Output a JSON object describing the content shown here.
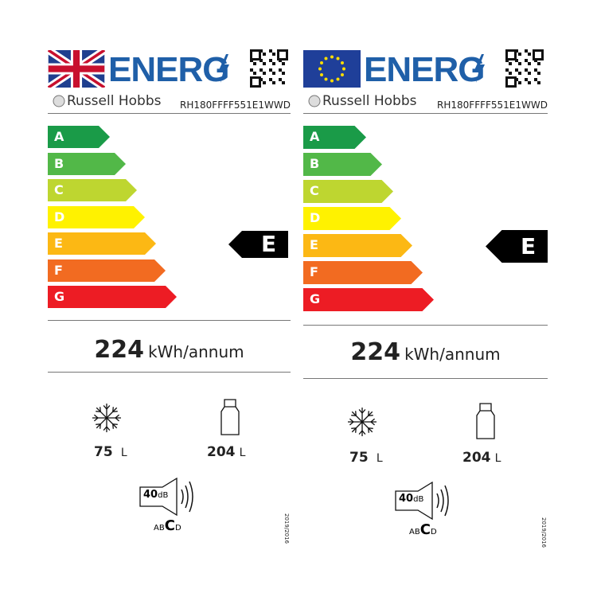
{
  "labels": [
    {
      "flag": "uk-flag-icon",
      "title": "ENERG",
      "brand": "Russell Hobbs",
      "model": "RH180FFFF551E1WWD",
      "classes": [
        "A",
        "B",
        "C",
        "D",
        "E",
        "F",
        "G"
      ],
      "rating": "E",
      "energy_value": "224",
      "energy_unit": "kWh/annum",
      "freezer_volume": "75",
      "freezer_unit": "L",
      "fridge_volume": "204",
      "fridge_unit": "L",
      "noise_value": "40",
      "noise_unit": "dB",
      "noise_classes": [
        "A",
        "B",
        "C",
        "D"
      ],
      "noise_class": "C",
      "regulation": "2019/2016"
    },
    {
      "flag": "eu-flag-icon",
      "title": "ENERG",
      "brand": "Russell Hobbs",
      "model": "RH180FFFF551E1WWD",
      "classes": [
        "A",
        "B",
        "C",
        "D",
        "E",
        "F",
        "G"
      ],
      "rating": "E",
      "energy_value": "224",
      "energy_unit": "kWh/annum",
      "freezer_volume": "75",
      "freezer_unit": "L",
      "fridge_volume": "204",
      "fridge_unit": "L",
      "noise_value": "40",
      "noise_unit": "dB",
      "noise_classes": [
        "A",
        "B",
        "C",
        "D"
      ],
      "noise_class": "C",
      "regulation": "2019/2016"
    }
  ],
  "colors": {
    "A": "#1a9b48",
    "B": "#52b848",
    "C": "#bed630",
    "D": "#fff200",
    "E": "#fcb814",
    "F": "#f26b21",
    "G": "#ed1c24",
    "energ_text": "#1f5fa8",
    "indicator": "#000000"
  }
}
